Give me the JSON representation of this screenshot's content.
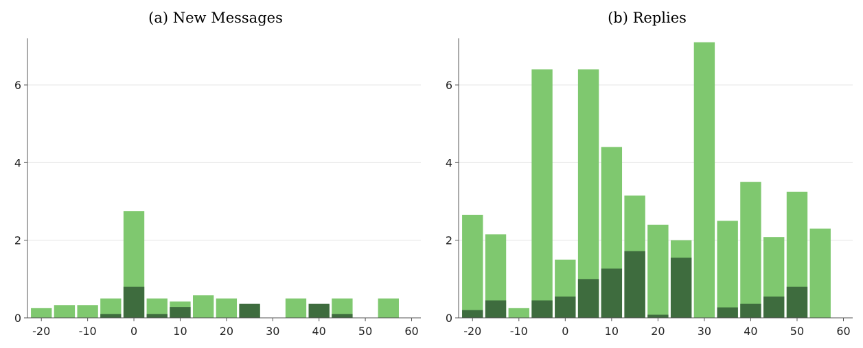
{
  "chart_data": [
    {
      "type": "bar",
      "title": "(a) New Messages",
      "xlim": [
        -23,
        62
      ],
      "ylim": [
        0,
        7.2
      ],
      "xticks": [
        -20,
        -10,
        0,
        10,
        20,
        30,
        40,
        50,
        60
      ],
      "yticks": [
        0,
        2,
        4,
        6
      ],
      "grid": "horizontal",
      "bar_width": 4.5,
      "colors": {
        "light": "#7fc86f",
        "dark": "#3e6c3e"
      },
      "x": [
        -20,
        -15,
        -10,
        -5,
        0,
        5,
        10,
        15,
        20,
        25,
        30,
        35,
        40,
        45,
        50,
        55
      ],
      "series": [
        {
          "values": [
            0.25,
            0.33,
            0.33,
            0.5,
            2.75,
            0.5,
            0.42,
            0.58,
            0.5,
            0.33,
            0,
            0.5,
            0.33,
            0.5,
            0,
            0.5
          ]
        },
        {
          "values": [
            0,
            0,
            0,
            0.1,
            0.8,
            0.1,
            0.28,
            0,
            0,
            0.36,
            0,
            0,
            0.36,
            0.1,
            0,
            0
          ]
        }
      ]
    },
    {
      "type": "bar",
      "title": "(b) Replies",
      "xlim": [
        -23,
        62
      ],
      "ylim": [
        0,
        7.2
      ],
      "xticks": [
        -20,
        -10,
        0,
        10,
        20,
        30,
        40,
        50,
        60
      ],
      "yticks": [
        0,
        2,
        4,
        6
      ],
      "grid": "horizontal",
      "bar_width": 4.5,
      "colors": {
        "light": "#7fc86f",
        "dark": "#3e6c3e"
      },
      "x": [
        -20,
        -15,
        -10,
        -5,
        0,
        5,
        10,
        15,
        20,
        25,
        30,
        35,
        40,
        45,
        50,
        55
      ],
      "series": [
        {
          "values": [
            2.65,
            2.15,
            0.25,
            6.4,
            1.5,
            6.4,
            4.4,
            3.15,
            2.4,
            2.0,
            7.1,
            2.5,
            3.5,
            2.08,
            3.25,
            2.3
          ]
        },
        {
          "values": [
            0.2,
            0.45,
            0,
            0.45,
            0.55,
            1.0,
            1.27,
            1.72,
            0.08,
            1.55,
            0,
            0.27,
            0.36,
            0.55,
            0.8,
            0
          ]
        }
      ]
    }
  ]
}
